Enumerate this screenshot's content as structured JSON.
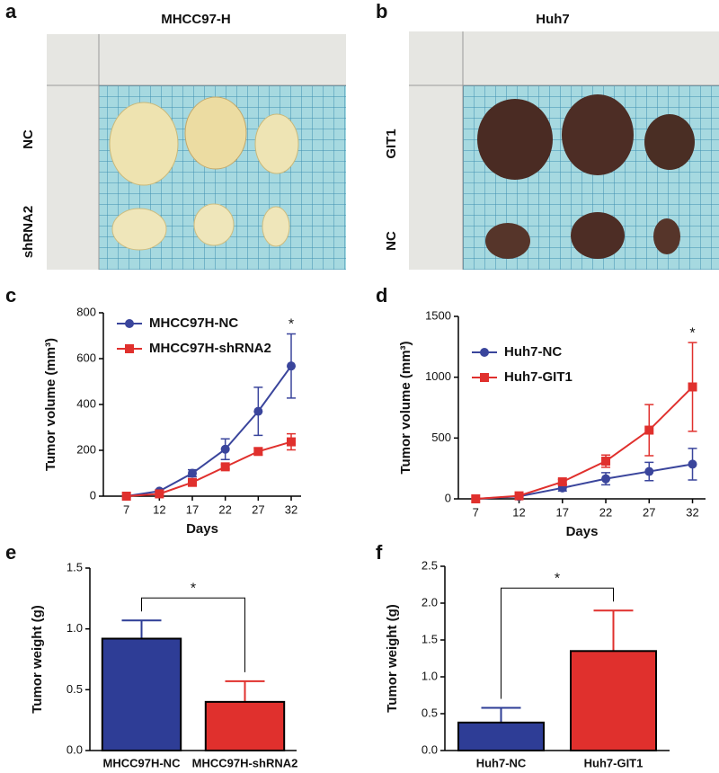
{
  "panel_letters": [
    "a",
    "b",
    "c",
    "d",
    "e",
    "f"
  ],
  "photos": [
    {
      "title": "MHCC97-H",
      "row_labels": [
        "NC",
        "shRNA2"
      ]
    },
    {
      "title": "Huh7",
      "row_labels": [
        "GIT1",
        "NC"
      ]
    }
  ],
  "chart_data": [
    {
      "type": "line",
      "xlabel": "Days",
      "ylabel": "Tumor volume (mm³)",
      "x": [
        7,
        12,
        17,
        22,
        27,
        32
      ],
      "xlim": [
        3.5,
        33.5
      ],
      "xticks": [
        7,
        12,
        17,
        22,
        27,
        32
      ],
      "ylim": [
        0,
        800
      ],
      "yticks": [
        0,
        200,
        400,
        600,
        800
      ],
      "legend": "upper left",
      "annotation": "*",
      "series": [
        {
          "name": "MHCC97H-NC",
          "color": "#3a459c",
          "marker": "circle",
          "values": [
            0,
            22,
            100,
            205,
            370,
            568
          ],
          "errors": [
            3,
            5,
            15,
            45,
            105,
            140
          ]
        },
        {
          "name": "MHCC97H-shRNA2",
          "color": "#e0302d",
          "marker": "square",
          "values": [
            0,
            10,
            60,
            128,
            195,
            237
          ],
          "errors": [
            2,
            3,
            8,
            10,
            15,
            35
          ]
        }
      ]
    },
    {
      "type": "line",
      "xlabel": "Days",
      "ylabel": "Tumor volume (mm³)",
      "x": [
        7,
        12,
        17,
        22,
        27,
        32
      ],
      "xlim": [
        5,
        33.5
      ],
      "xticks": [
        7,
        12,
        17,
        22,
        27,
        32
      ],
      "ylim": [
        0,
        1500
      ],
      "yticks": [
        0,
        500,
        1000,
        1500
      ],
      "legend": "upper left",
      "annotation": "*",
      "series": [
        {
          "name": "Huh7-NC",
          "color": "#3a459c",
          "marker": "circle",
          "values": [
            0,
            20,
            90,
            165,
            225,
            285
          ],
          "errors": [
            2,
            5,
            25,
            50,
            75,
            130
          ]
        },
        {
          "name": "Huh7-GIT1",
          "color": "#e0302d",
          "marker": "square",
          "values": [
            0,
            25,
            140,
            310,
            565,
            920
          ],
          "errors": [
            2,
            5,
            20,
            50,
            210,
            365
          ]
        }
      ]
    },
    {
      "type": "bar",
      "ylabel": "Tumor weight (g)",
      "categories": [
        "MHCC97H-NC",
        "MHCC97H-shRNA2"
      ],
      "values": [
        0.92,
        0.4
      ],
      "errors": [
        0.15,
        0.17
      ],
      "colors": [
        "#2e3d96",
        "#e0302d"
      ],
      "ylim": [
        0,
        1.5
      ],
      "yticks": [
        {
          "value": 0,
          "label": "0.0"
        },
        0.5,
        {
          "value": 1,
          "label": "1.0"
        },
        1.5
      ],
      "annotation": "*"
    },
    {
      "type": "bar",
      "ylabel": "Tumor weight (g)",
      "categories": [
        "Huh7-NC",
        "Huh7-GIT1"
      ],
      "values": [
        0.38,
        1.35
      ],
      "errors": [
        0.2,
        0.55
      ],
      "colors": [
        "#2e3d96",
        "#e0302d"
      ],
      "ylim": [
        0,
        2.5
      ],
      "yticks": [
        {
          "value": 0,
          "label": "0.0"
        },
        0.5,
        {
          "value": 1,
          "label": "1.0"
        },
        1.5,
        {
          "value": 2,
          "label": "2.0"
        },
        2.5
      ],
      "annotation": "*"
    }
  ]
}
